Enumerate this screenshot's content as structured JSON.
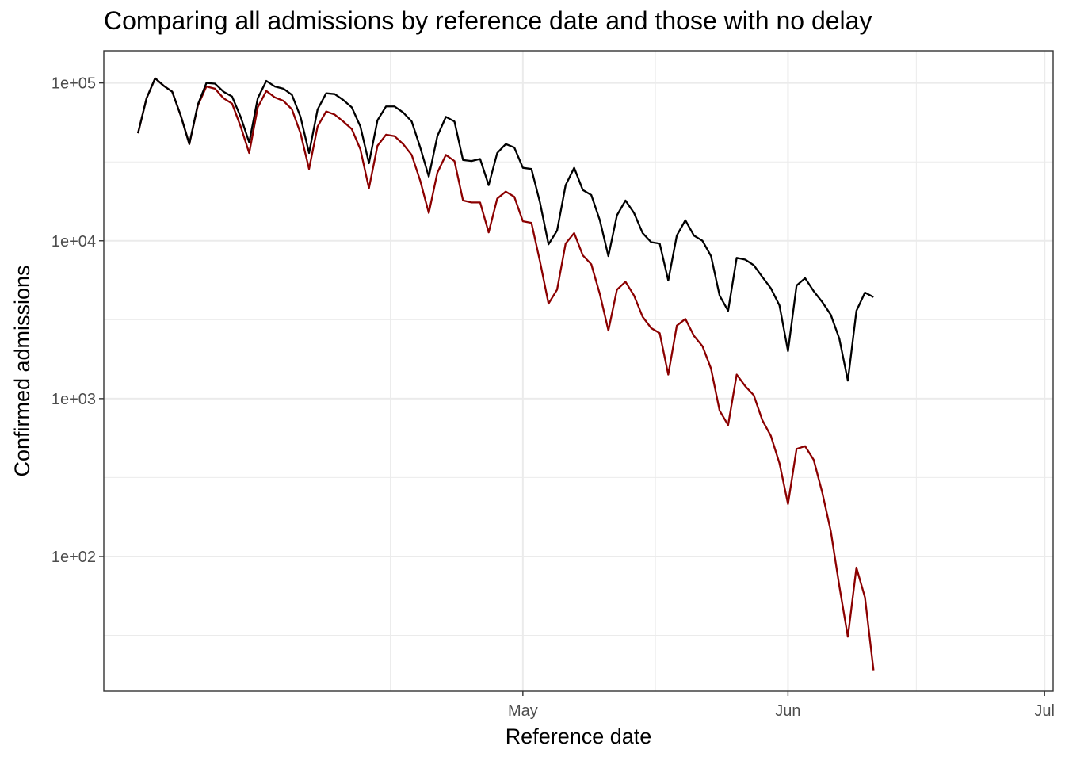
{
  "chart_data": {
    "type": "line",
    "title": "Comparing all admissions by reference date and those with no delay",
    "xlabel": "Reference date",
    "ylabel": "Confirmed admissions",
    "x_axis": {
      "type": "date",
      "range": [
        "2021-03-13",
        "2021-07-02"
      ],
      "ticks": [
        {
          "date": "2021-05-01",
          "label": "May"
        },
        {
          "date": "2021-06-01",
          "label": "Jun"
        },
        {
          "date": "2021-07-01",
          "label": "Jul"
        }
      ]
    },
    "y_axis": {
      "scale": "log10",
      "range": [
        14,
        160000
      ],
      "ticks": [
        {
          "value": 100,
          "label": "1e+02"
        },
        {
          "value": 1000,
          "label": "1e+03"
        },
        {
          "value": 10000,
          "label": "1e+04"
        },
        {
          "value": 100000,
          "label": "1e+05"
        }
      ]
    },
    "grid": true,
    "start_date": "2021-03-17",
    "series": [
      {
        "color": "#000000",
        "values": [
          48000,
          80000,
          107000,
          96000,
          88000,
          62000,
          41000,
          73000,
          100000,
          99000,
          88000,
          82000,
          61000,
          42000,
          80000,
          103000,
          95000,
          92000,
          84000,
          61000,
          36000,
          68000,
          86000,
          85000,
          78000,
          70000,
          53000,
          31000,
          58000,
          71000,
          71000,
          65000,
          57000,
          39000,
          25500,
          46000,
          61000,
          57000,
          32500,
          32000,
          33000,
          22500,
          36000,
          41000,
          39000,
          29000,
          28500,
          17500,
          9500,
          11600,
          22500,
          29000,
          21000,
          19500,
          13500,
          8000,
          14500,
          18000,
          15000,
          11200,
          9800,
          9600,
          5600,
          10800,
          13500,
          10800,
          10000,
          8000,
          4500,
          3600,
          7800,
          7600,
          7000,
          5900,
          5000,
          3900,
          2000,
          5200,
          5800,
          4800,
          4100,
          3400,
          2400,
          1300,
          3600,
          4700,
          4400
        ]
      },
      {
        "color": "#8b0000",
        "values": [
          48000,
          80000,
          107000,
          96000,
          88000,
          62000,
          41000,
          72000,
          95000,
          92000,
          80000,
          74000,
          53000,
          36000,
          70000,
          89000,
          81000,
          77000,
          68000,
          48000,
          28500,
          53000,
          66000,
          63000,
          57000,
          51000,
          38000,
          21500,
          40000,
          47000,
          46000,
          41000,
          35000,
          24000,
          15000,
          27000,
          35000,
          32000,
          18000,
          17500,
          17500,
          11300,
          18500,
          20500,
          19000,
          13300,
          13000,
          7400,
          4000,
          4900,
          9600,
          11200,
          8100,
          7100,
          4600,
          2700,
          4900,
          5500,
          4500,
          3300,
          2800,
          2600,
          1420,
          2900,
          3200,
          2500,
          2150,
          1550,
          840,
          680,
          1420,
          1200,
          1050,
          730,
          580,
          390,
          215,
          480,
          500,
          410,
          255,
          145,
          65,
          31,
          85,
          55,
          19
        ]
      }
    ]
  }
}
